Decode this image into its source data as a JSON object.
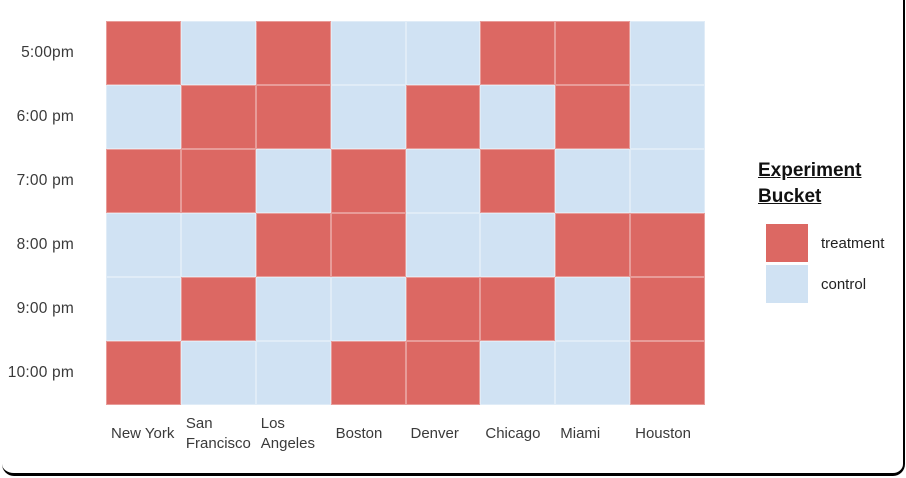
{
  "chart_data": {
    "type": "heatmap",
    "x_categories": [
      "New York",
      "San Francisco",
      "Los Angeles",
      "Boston",
      "Denver",
      "Chicago",
      "Miami",
      "Houston"
    ],
    "y_categories": [
      "5:00pm",
      "6:00 pm",
      "7:00 pm",
      "8:00 pm",
      "9:00 pm",
      "10:00 pm"
    ],
    "value_domain": [
      "treatment",
      "control"
    ],
    "values": [
      [
        "treatment",
        "control",
        "treatment",
        "control",
        "control",
        "treatment",
        "treatment",
        "control"
      ],
      [
        "control",
        "treatment",
        "treatment",
        "control",
        "treatment",
        "control",
        "treatment",
        "control"
      ],
      [
        "treatment",
        "treatment",
        "control",
        "treatment",
        "control",
        "treatment",
        "control",
        "control"
      ],
      [
        "control",
        "control",
        "treatment",
        "treatment",
        "control",
        "control",
        "treatment",
        "treatment"
      ],
      [
        "control",
        "treatment",
        "control",
        "control",
        "treatment",
        "treatment",
        "control",
        "treatment"
      ],
      [
        "treatment",
        "control",
        "control",
        "treatment",
        "treatment",
        "control",
        "control",
        "treatment"
      ]
    ],
    "cell_colors": {
      "treatment": "#DC6863",
      "control": "#D0E2F3"
    },
    "legend_position": "right",
    "grid": "off",
    "axis_lines": "off"
  },
  "legend": {
    "title": "Experiment Bucket",
    "items": [
      {
        "key": "treatment",
        "label": "treatment",
        "swatch_color": "#DC6863"
      },
      {
        "key": "control",
        "label": "control",
        "swatch_color": "#D0E2F3"
      }
    ]
  },
  "colors": {
    "treatment": "#DC6863",
    "control": "#D0E2F3",
    "axis_label_text": "#3A3A3A",
    "legend_title_text": "#111111",
    "frame_border": "#000000",
    "background": "#FFFFFF"
  }
}
